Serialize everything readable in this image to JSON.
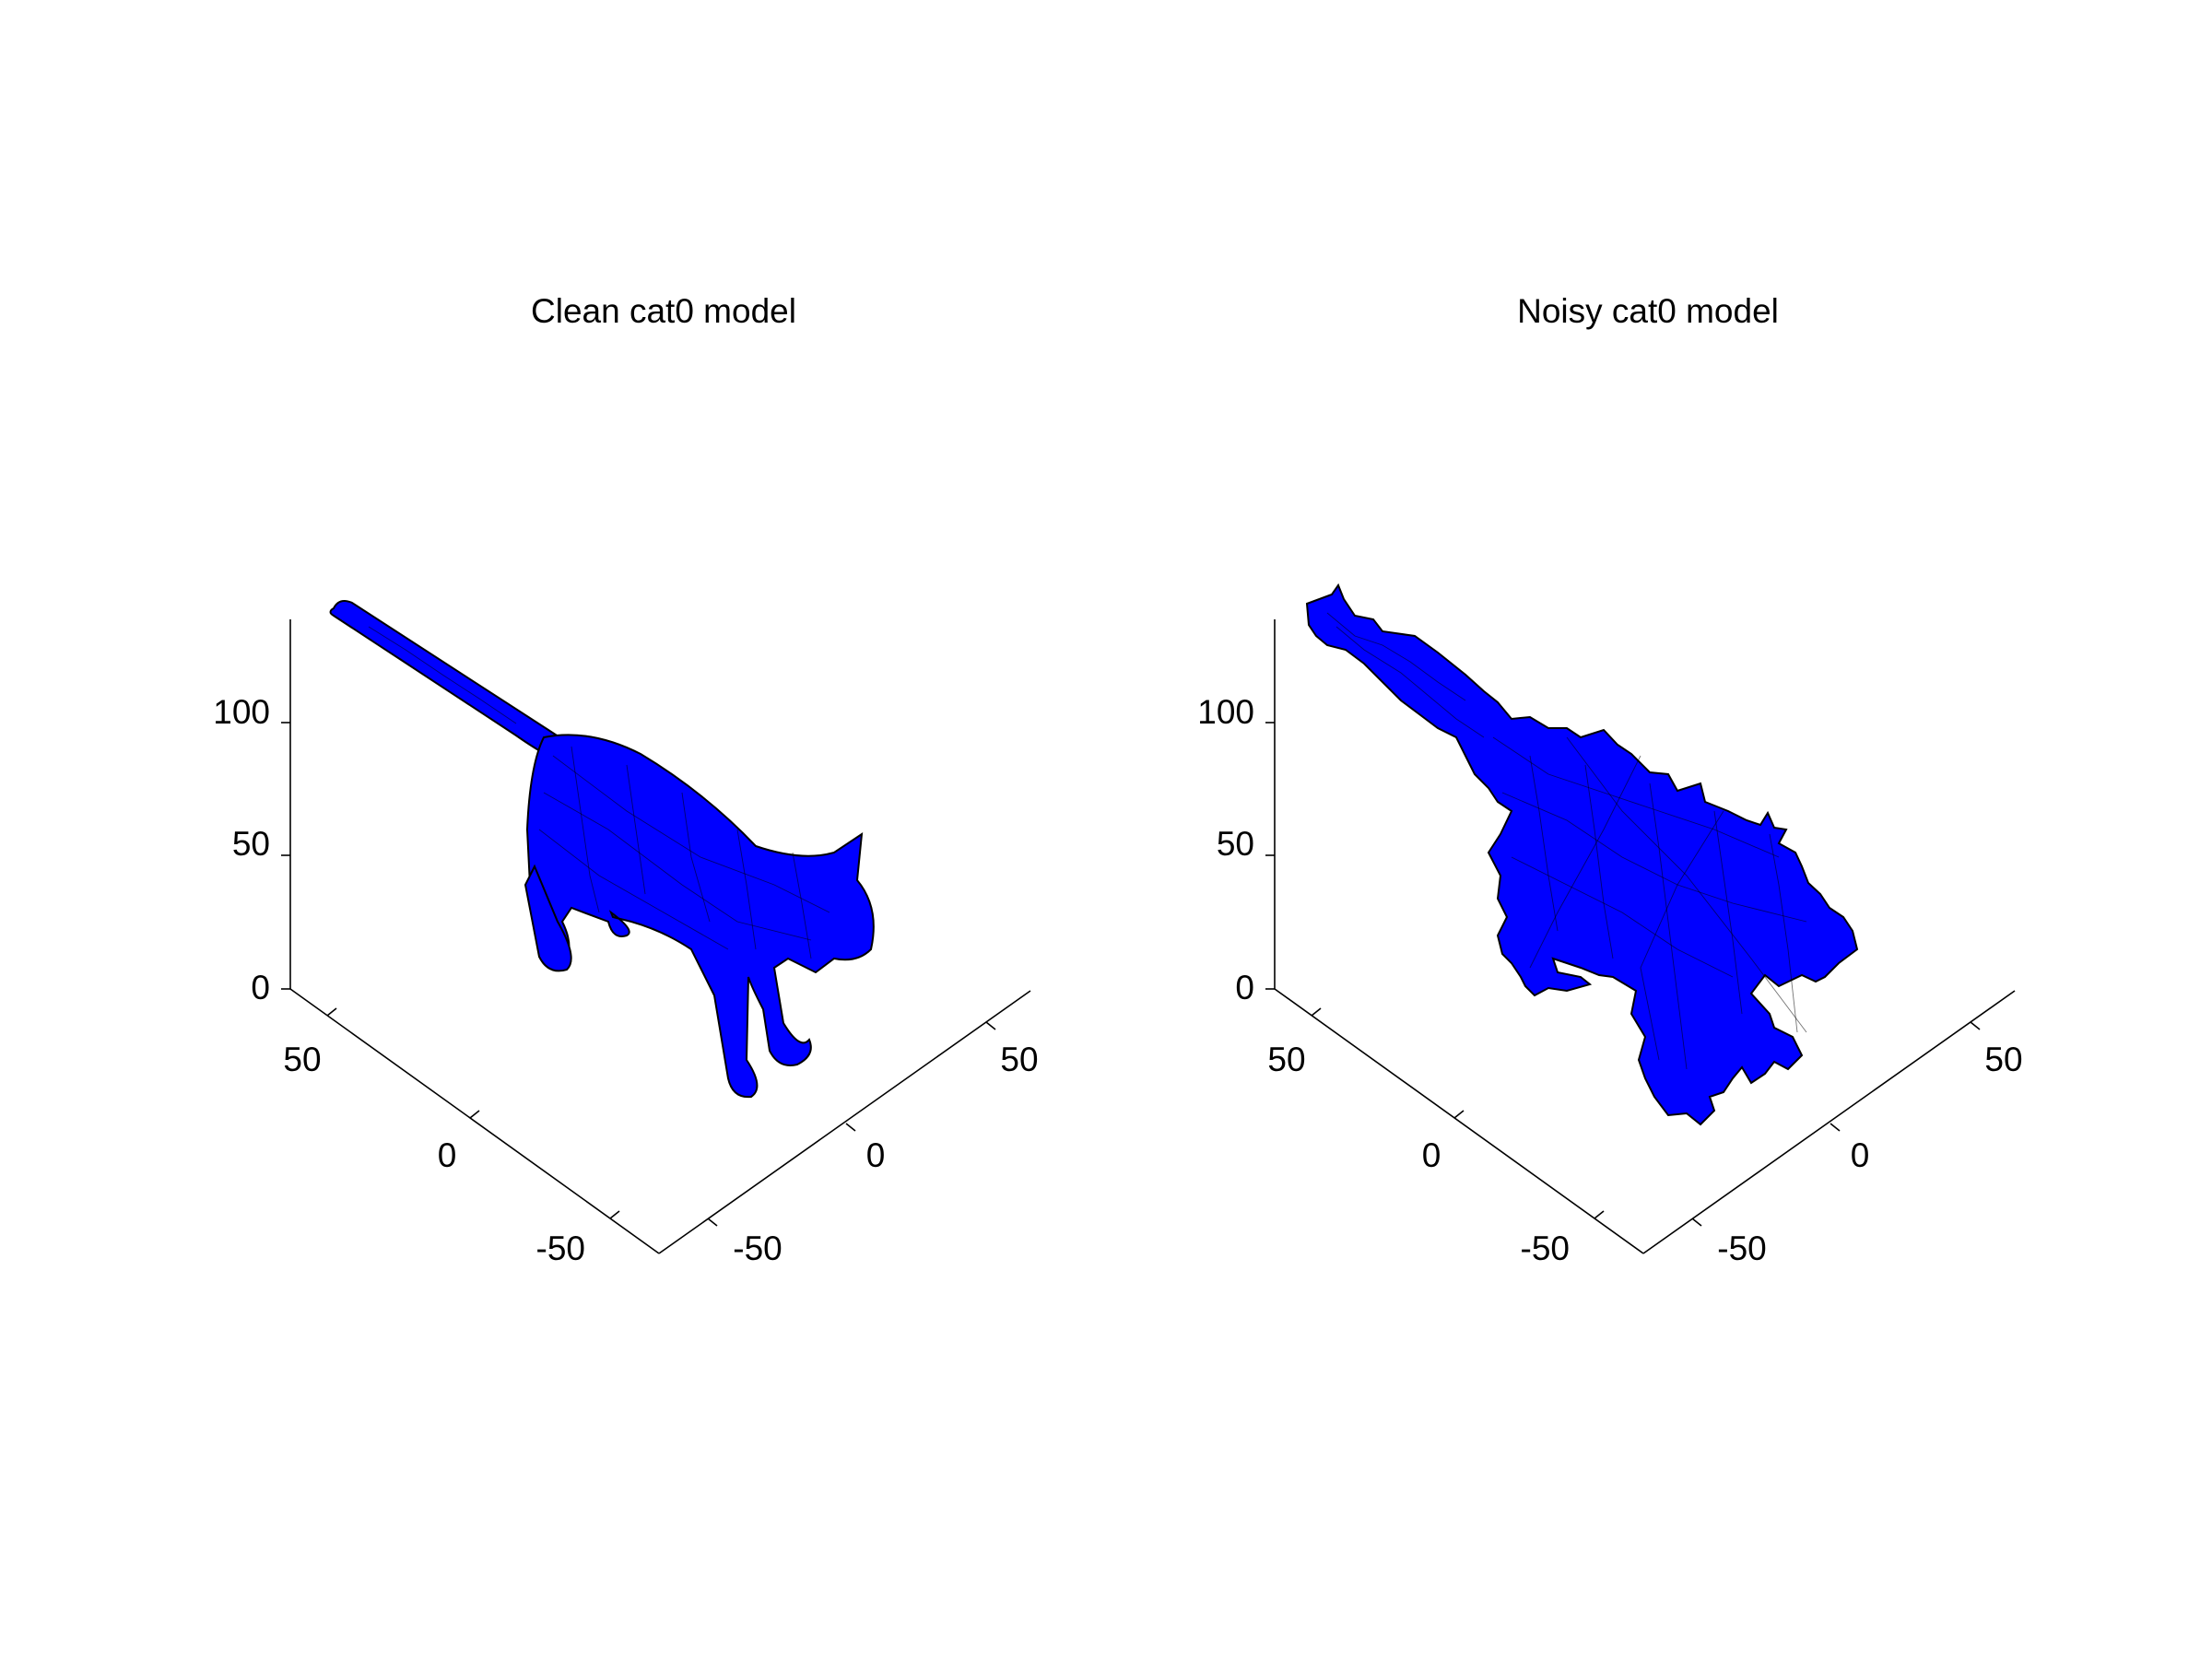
{
  "chart_data": [
    {
      "type": "3d-surface",
      "title": "Clean cat0 model",
      "surface_color": "#0000ff",
      "edge_color": "#000000",
      "axes": {
        "x": {
          "ticks": [
            -50,
            0,
            50
          ],
          "tick_labels": [
            "-50",
            "0",
            "50"
          ]
        },
        "y": {
          "ticks": [
            -50,
            0,
            50
          ],
          "tick_labels": [
            "-50",
            "0",
            "50"
          ]
        },
        "z": {
          "ticks": [
            0,
            50,
            100
          ],
          "tick_labels": [
            "0",
            "50",
            "100"
          ]
        }
      },
      "grid": false
    },
    {
      "type": "3d-surface",
      "title": "Noisy cat0 model",
      "surface_color": "#0000ff",
      "edge_color": "#000000",
      "axes": {
        "x": {
          "ticks": [
            -50,
            0,
            50
          ],
          "tick_labels": [
            "-50",
            "0",
            "50"
          ]
        },
        "y": {
          "ticks": [
            -50,
            0,
            50
          ],
          "tick_labels": [
            "-50",
            "0",
            "50"
          ]
        },
        "z": {
          "ticks": [
            0,
            50,
            100
          ],
          "tick_labels": [
            "0",
            "50",
            "100"
          ]
        }
      },
      "grid": false
    }
  ]
}
